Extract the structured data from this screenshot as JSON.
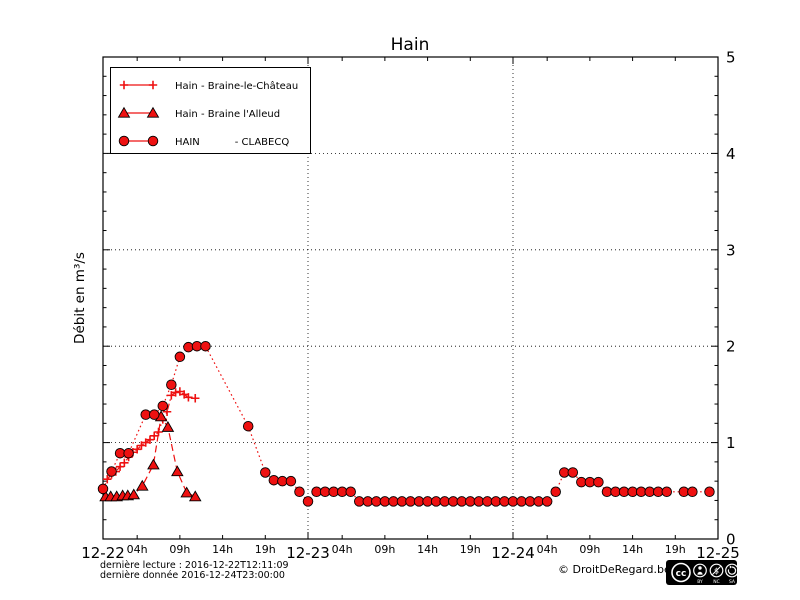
{
  "chart_data": {
    "type": "line",
    "title": "Hain",
    "ylabel": "Débit en m³/s",
    "ylim": [
      0,
      5
    ],
    "y_major_ticks": [
      0,
      1,
      2,
      3,
      4,
      5
    ],
    "y_minor_step": 0.2,
    "x_total_hours": 72,
    "x_day_ticks": [
      {
        "hour": 0,
        "label": "12-22"
      },
      {
        "hour": 24,
        "label": "12-23"
      },
      {
        "hour": 48,
        "label": "12-24"
      },
      {
        "hour": 72,
        "label": "12-25"
      }
    ],
    "x_hour_labels": [
      {
        "offset": 4,
        "label": "04h"
      },
      {
        "offset": 9,
        "label": "09h"
      },
      {
        "offset": 14,
        "label": "14h"
      },
      {
        "offset": 19,
        "label": "19h"
      }
    ],
    "grid": {
      "horizontal_at": [
        1,
        2,
        3,
        4
      ],
      "vertical_at_hours": [
        24,
        48
      ],
      "style": "dotted"
    },
    "legend_position": "upper-left",
    "series": [
      {
        "name": "Hain - Braine-le-Château",
        "marker": "plus",
        "line": "dashdot",
        "color": "#ee1111",
        "points": [
          [
            0.5,
            0.62
          ],
          [
            1,
            0.67
          ],
          [
            1.5,
            0.7
          ],
          [
            2,
            0.75
          ],
          [
            2.5,
            0.79
          ],
          [
            3,
            0.85
          ],
          [
            3.5,
            0.9
          ],
          [
            4,
            0.93
          ],
          [
            4.5,
            0.97
          ],
          [
            5,
            1.0
          ],
          [
            5.5,
            1.03
          ],
          [
            6,
            1.07
          ],
          [
            6.5,
            1.11
          ],
          [
            7,
            1.24
          ],
          [
            7.5,
            1.32
          ],
          [
            8,
            1.49
          ],
          [
            8.5,
            1.52
          ],
          [
            9,
            1.53
          ],
          [
            9.5,
            1.5
          ],
          [
            10,
            1.47
          ],
          [
            10.8,
            1.46
          ]
        ]
      },
      {
        "name": "Hain - Braine l'Alleud",
        "marker": "triangle",
        "line": "dashed",
        "color": "#ee1111",
        "points": [
          [
            0.3,
            0.44
          ],
          [
            0.9,
            0.44
          ],
          [
            1.6,
            0.44
          ],
          [
            2.3,
            0.45
          ],
          [
            2.9,
            0.45
          ],
          [
            3.6,
            0.46
          ],
          [
            4.6,
            0.55
          ],
          [
            5.9,
            0.77
          ],
          [
            6.8,
            1.27
          ],
          [
            7.6,
            1.16
          ],
          [
            8.7,
            0.7
          ],
          [
            9.8,
            0.48
          ],
          [
            10.8,
            0.44
          ]
        ]
      },
      {
        "name": "HAIN           - CLABECQ",
        "marker": "circle",
        "line": "dotted",
        "color": "#ee1111",
        "points": [
          [
            0,
            0.52
          ],
          [
            1,
            0.7
          ],
          [
            2,
            0.89
          ],
          [
            3,
            0.89
          ],
          [
            5,
            1.29
          ],
          [
            6,
            1.29
          ],
          [
            7,
            1.38
          ],
          [
            8,
            1.6
          ],
          [
            9,
            1.89
          ],
          [
            10,
            1.99
          ],
          [
            11,
            2.0
          ],
          [
            12,
            2.0
          ],
          [
            17,
            1.17
          ],
          [
            19,
            0.69
          ],
          [
            20,
            0.61
          ],
          [
            21,
            0.6
          ],
          [
            22,
            0.6
          ],
          [
            23,
            0.49
          ],
          [
            24,
            0.39
          ],
          [
            25,
            0.49
          ],
          [
            26,
            0.49
          ],
          [
            27,
            0.49
          ],
          [
            28,
            0.49
          ],
          [
            29,
            0.49
          ],
          [
            30,
            0.39
          ],
          [
            31,
            0.39
          ],
          [
            32,
            0.39
          ],
          [
            33,
            0.39
          ],
          [
            34,
            0.39
          ],
          [
            35,
            0.39
          ],
          [
            36,
            0.39
          ],
          [
            37,
            0.39
          ],
          [
            38,
            0.39
          ],
          [
            39,
            0.39
          ],
          [
            40,
            0.39
          ],
          [
            41,
            0.39
          ],
          [
            42,
            0.39
          ],
          [
            43,
            0.39
          ],
          [
            44,
            0.39
          ],
          [
            45,
            0.39
          ],
          [
            46,
            0.39
          ],
          [
            47,
            0.39
          ],
          [
            48,
            0.39
          ],
          [
            49,
            0.39
          ],
          [
            50,
            0.39
          ],
          [
            51,
            0.39
          ],
          [
            52,
            0.39
          ],
          [
            53,
            0.49
          ],
          [
            54,
            0.69
          ],
          [
            55,
            0.69
          ],
          [
            56,
            0.59
          ],
          [
            57,
            0.59
          ],
          [
            58,
            0.59
          ],
          [
            59,
            0.49
          ],
          [
            60,
            0.49
          ],
          [
            61,
            0.49
          ],
          [
            62,
            0.49
          ],
          [
            63,
            0.49
          ],
          [
            64,
            0.49
          ],
          [
            65,
            0.49
          ],
          [
            66,
            0.49
          ],
          [
            68,
            0.49
          ],
          [
            69,
            0.49
          ],
          [
            71,
            0.49
          ]
        ]
      }
    ]
  },
  "footer": {
    "last_reading": "dernière lecture : 2016-12-22T12:11:09",
    "last_data": "dernière donnée  2016-12-24T23:00:00",
    "copyright": "© DroitDeRegard.be",
    "license": {
      "cc": "cc",
      "nc_symbol": "$",
      "labels": [
        "BY",
        "NC",
        "SA"
      ]
    }
  }
}
